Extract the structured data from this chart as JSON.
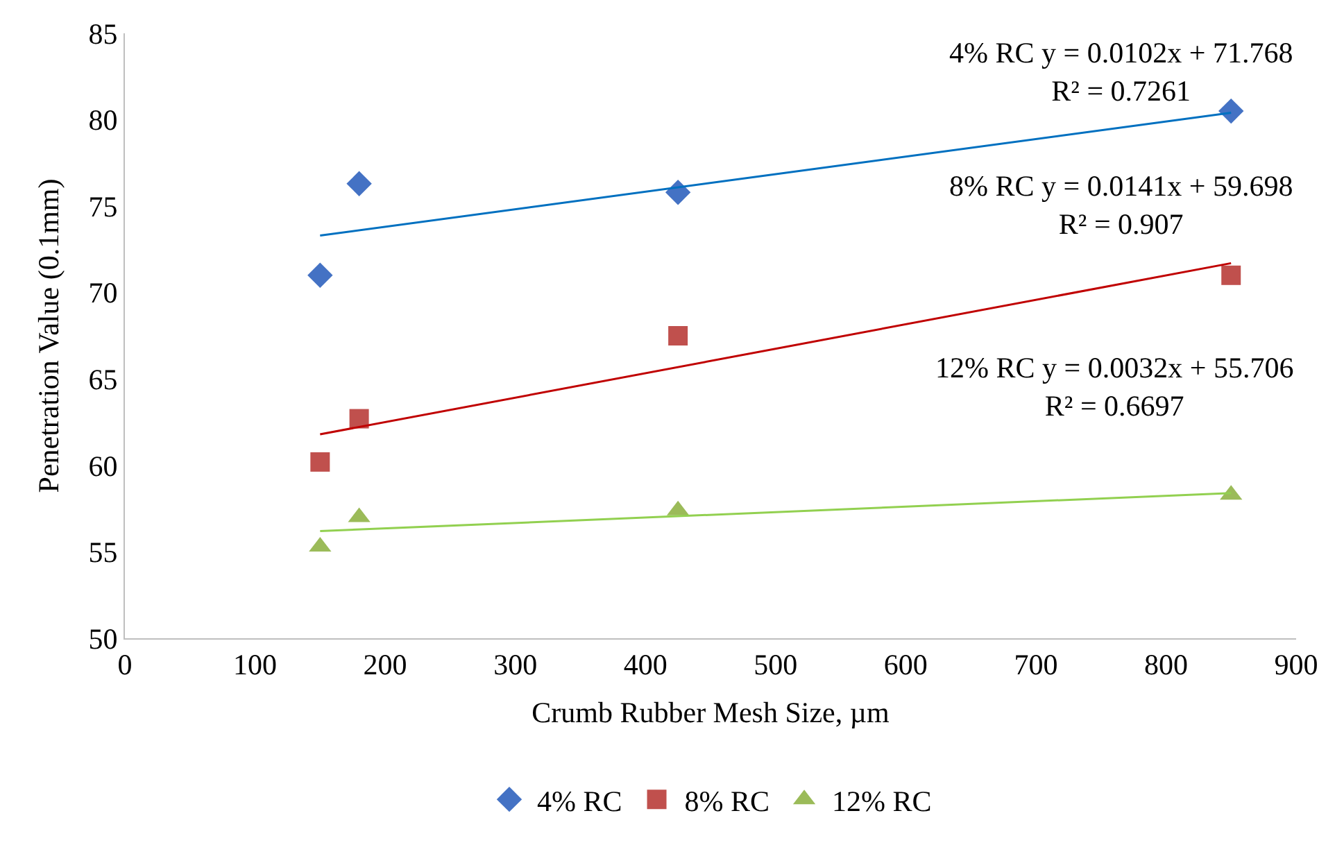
{
  "chart_data": {
    "type": "scatter",
    "xlabel": "Crumb Rubber Mesh Size, µm",
    "ylabel": "Penetration Value (0.1mm)",
    "xlim": [
      0,
      900
    ],
    "xticks": [
      0,
      100,
      200,
      300,
      400,
      500,
      600,
      700,
      800,
      900
    ],
    "ylim": [
      50,
      85
    ],
    "yticks": [
      50,
      55,
      60,
      65,
      70,
      75,
      80,
      85
    ],
    "legend": "bottom",
    "series": [
      {
        "name": "4% RC",
        "color": "#4472c4",
        "marker": "diamond",
        "x": [
          150,
          180,
          425,
          850
        ],
        "values": [
          71.0,
          76.3,
          75.8,
          80.5
        ]
      },
      {
        "name": "8% RC",
        "color": "#c0504d",
        "marker": "square",
        "x": [
          150,
          180,
          425,
          850
        ],
        "values": [
          60.2,
          62.7,
          67.5,
          71.0
        ]
      },
      {
        "name": "12% RC",
        "color": "#9bbb59",
        "marker": "triangle",
        "x": [
          150,
          180,
          425,
          850
        ],
        "values": [
          55.3,
          57.0,
          57.4,
          58.3
        ]
      },
      {
        "type": "line",
        "color": "#0070c0",
        "marker": "none",
        "x": [
          150,
          850
        ],
        "values": [
          73.3,
          80.4
        ]
      },
      {
        "type": "line",
        "color": "#c00000",
        "marker": "none",
        "x": [
          150,
          850
        ],
        "values": [
          61.8,
          71.7
        ]
      },
      {
        "type": "line",
        "color": "#92d050",
        "marker": "none",
        "x": [
          150,
          850
        ],
        "values": [
          56.2,
          58.4
        ]
      }
    ],
    "annotations": [
      "4% RC y = 0.0102x + 71.768\nR² = 0.7261",
      "8% RC y = 0.0141x + 59.698\nR² = 0.907",
      "12% RC y = 0.0032x + 55.706\nR² = 0.6697"
    ]
  }
}
